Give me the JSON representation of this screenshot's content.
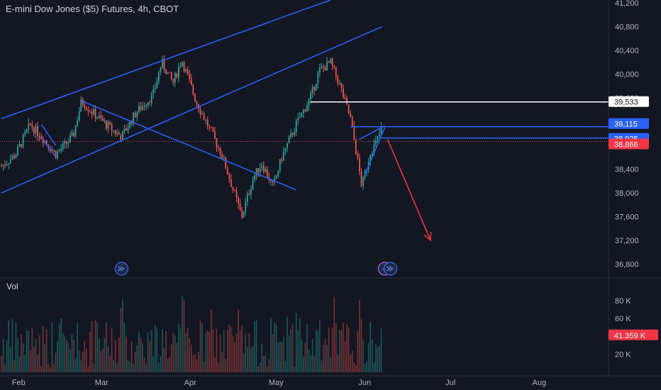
{
  "title": "E-mini Dow Jones ($5) Futures, 4h, CBOT",
  "volume_label": "Vol",
  "colors": {
    "background": "#131722",
    "up": "#26a69a",
    "down": "#ef5350",
    "drawing": "#2962ff",
    "arrow": "#f23645",
    "text": "#b2b5be"
  },
  "chart_data": {
    "type": "candlestick",
    "title": "E-mini Dow Jones ($5) Futures, 4h, CBOT",
    "xlabel": "",
    "ylabel": "",
    "x_ticks": [
      "Feb",
      "Mar",
      "Apr",
      "May",
      "Jun",
      "Jul",
      "Aug"
    ],
    "y_ticks": [
      "41,200",
      "40,800",
      "40,400",
      "40,000",
      "39,600",
      "38,400",
      "38,000",
      "37,600",
      "37,200",
      "36,800"
    ],
    "ylim": [
      36650,
      41250
    ],
    "volume_ticks": [
      "80 K",
      "60 K",
      "20 K"
    ],
    "volume_ylim": [
      0,
      95000
    ],
    "grid": false,
    "price_path": [
      {
        "date": "2024-01-26",
        "price": 38450
      },
      {
        "date": "2024-01-31",
        "price": 38650
      },
      {
        "date": "2024-02-05",
        "price": 39150
      },
      {
        "date": "2024-02-09",
        "price": 38950
      },
      {
        "date": "2024-02-14",
        "price": 38650
      },
      {
        "date": "2024-02-20",
        "price": 38950
      },
      {
        "date": "2024-02-23",
        "price": 39550
      },
      {
        "date": "2024-02-27",
        "price": 39350
      },
      {
        "date": "2024-03-05",
        "price": 39050
      },
      {
        "date": "2024-03-08",
        "price": 38950
      },
      {
        "date": "2024-03-13",
        "price": 39350
      },
      {
        "date": "2024-03-19",
        "price": 39650
      },
      {
        "date": "2024-03-22",
        "price": 40200
      },
      {
        "date": "2024-03-26",
        "price": 39850
      },
      {
        "date": "2024-03-29",
        "price": 40250
      },
      {
        "date": "2024-04-03",
        "price": 39550
      },
      {
        "date": "2024-04-08",
        "price": 39050
      },
      {
        "date": "2024-04-12",
        "price": 38650
      },
      {
        "date": "2024-04-16",
        "price": 38050
      },
      {
        "date": "2024-04-19",
        "price": 37600
      },
      {
        "date": "2024-04-23",
        "price": 38250
      },
      {
        "date": "2024-04-26",
        "price": 38500
      },
      {
        "date": "2024-04-30",
        "price": 38100
      },
      {
        "date": "2024-05-03",
        "price": 38600
      },
      {
        "date": "2024-05-08",
        "price": 39150
      },
      {
        "date": "2024-05-13",
        "price": 39600
      },
      {
        "date": "2024-05-16",
        "price": 40050
      },
      {
        "date": "2024-05-20",
        "price": 40200
      },
      {
        "date": "2024-05-23",
        "price": 39850
      },
      {
        "date": "2024-05-27",
        "price": 39250
      },
      {
        "date": "2024-05-29",
        "price": 38700
      },
      {
        "date": "2024-05-31",
        "price": 38100
      },
      {
        "date": "2024-06-03",
        "price": 38700
      },
      {
        "date": "2024-06-05",
        "price": 38850
      },
      {
        "date": "2024-06-07",
        "price": 39100
      }
    ],
    "price_labels": [
      {
        "label": "39,533",
        "value": 39533,
        "style": "white"
      },
      {
        "label": "39,115",
        "value": 39115,
        "style": "blue"
      },
      {
        "label": "38,925",
        "value": 38925,
        "style": "blue"
      },
      {
        "label": "38,866",
        "value": 38866,
        "style": "red"
      }
    ],
    "volume_label": {
      "label": "41.359 K",
      "value": 41359
    },
    "drawings": [
      {
        "kind": "channel-upper",
        "from": {
          "date": "2024-01-26",
          "price": 39250
        },
        "to": {
          "date": "2024-05-20",
          "price": 41250
        }
      },
      {
        "kind": "channel-lower",
        "from": {
          "date": "2024-01-26",
          "price": 38000
        },
        "to": {
          "date": "2024-06-07",
          "price": 40800
        }
      },
      {
        "kind": "falling-trendline",
        "from": {
          "date": "2024-02-23",
          "price": 39550
        },
        "to": {
          "date": "2024-05-08",
          "price": 38050
        }
      },
      {
        "kind": "flag",
        "from": {
          "date": "2024-02-09",
          "price": 39150
        },
        "to": {
          "date": "2024-02-14",
          "price": 38800
        }
      },
      {
        "kind": "flag",
        "from": {
          "date": "2024-02-09",
          "price": 38950
        },
        "to": {
          "date": "2024-02-14",
          "price": 38600
        }
      },
      {
        "kind": "horizontal-level",
        "price": 39533,
        "from": {
          "date": "2024-05-13"
        }
      },
      {
        "kind": "horizontal-level",
        "price": 39115,
        "from": {
          "date": "2024-05-27"
        }
      },
      {
        "kind": "horizontal-level",
        "price": 38925,
        "from": {
          "date": "2024-06-06"
        }
      },
      {
        "kind": "rising-wedge-upper",
        "from": {
          "date": "2024-05-30",
          "price": 38900
        },
        "to": {
          "date": "2024-06-08",
          "price": 39130
        }
      },
      {
        "kind": "rising-wedge-lower",
        "from": {
          "date": "2024-06-01",
          "price": 38300
        },
        "to": {
          "date": "2024-06-08",
          "price": 39100
        }
      },
      {
        "kind": "projection-arrow",
        "from": {
          "date": "2024-06-09",
          "price": 38900
        },
        "to": {
          "date": "2024-06-24",
          "price": 37200
        }
      }
    ],
    "event_markers": [
      {
        "kind": "events",
        "date": "2024-03-08"
      },
      {
        "kind": "dividend",
        "date": "2024-06-08"
      },
      {
        "kind": "events",
        "date": "2024-06-10"
      }
    ]
  }
}
